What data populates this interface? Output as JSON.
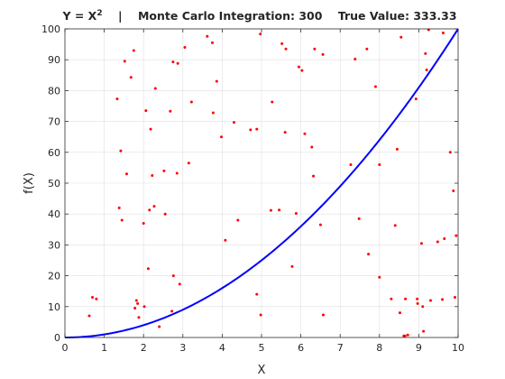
{
  "chart_data": {
    "type": "scatter",
    "title_prefix": "Y = X",
    "title_sup": "2",
    "title_rest": "    |    Monte Carlo Integration: 300    True Value: 333.33",
    "xlabel": "X",
    "ylabel": "f(X)",
    "xlim": [
      0,
      10
    ],
    "ylim": [
      0,
      100
    ],
    "xticks": [
      0,
      1,
      2,
      3,
      4,
      5,
      6,
      7,
      8,
      9,
      10
    ],
    "yticks": [
      0,
      10,
      20,
      30,
      40,
      50,
      60,
      70,
      80,
      90,
      100
    ],
    "grid": true,
    "colors": {
      "curve": "#0000ff",
      "points": "#ff0000"
    },
    "series": [
      {
        "type": "line",
        "function": "x^2",
        "x_range": [
          0,
          10
        ]
      },
      {
        "type": "scatter",
        "points": [
          [
            0.62,
            7.0
          ],
          [
            0.7,
            13.0
          ],
          [
            0.8,
            12.5
          ],
          [
            1.33,
            77.3
          ],
          [
            1.38,
            42.0
          ],
          [
            1.42,
            60.5
          ],
          [
            1.45,
            38.0
          ],
          [
            1.52,
            89.5
          ],
          [
            1.57,
            53.0
          ],
          [
            1.68,
            84.3
          ],
          [
            1.75,
            93.0
          ],
          [
            1.78,
            9.5
          ],
          [
            1.82,
            12.0
          ],
          [
            1.85,
            11.0
          ],
          [
            1.88,
            6.5
          ],
          [
            2.0,
            37.0
          ],
          [
            2.02,
            10.0
          ],
          [
            2.06,
            73.5
          ],
          [
            2.12,
            22.3
          ],
          [
            2.15,
            41.3
          ],
          [
            2.18,
            67.5
          ],
          [
            2.22,
            52.5
          ],
          [
            2.27,
            42.5
          ],
          [
            2.3,
            80.7
          ],
          [
            2.4,
            3.5
          ],
          [
            2.52,
            54.0
          ],
          [
            2.55,
            40.0
          ],
          [
            2.68,
            73.3
          ],
          [
            2.72,
            8.5
          ],
          [
            2.75,
            89.3
          ],
          [
            2.76,
            20.0
          ],
          [
            2.85,
            53.2
          ],
          [
            2.87,
            88.8
          ],
          [
            2.92,
            17.3
          ],
          [
            3.05,
            94.0
          ],
          [
            3.15,
            56.5
          ],
          [
            3.22,
            76.3
          ],
          [
            3.62,
            97.6
          ],
          [
            3.75,
            95.5
          ],
          [
            3.77,
            72.8
          ],
          [
            3.86,
            83.0
          ],
          [
            3.98,
            65.0
          ],
          [
            4.08,
            31.5
          ],
          [
            4.3,
            69.7
          ],
          [
            4.4,
            38.0
          ],
          [
            4.72,
            67.3
          ],
          [
            4.88,
            67.5
          ],
          [
            4.88,
            14.0
          ],
          [
            4.97,
            98.3
          ],
          [
            4.98,
            7.3
          ],
          [
            5.24,
            41.2
          ],
          [
            5.27,
            76.3
          ],
          [
            5.45,
            41.3
          ],
          [
            5.52,
            95.2
          ],
          [
            5.6,
            66.5
          ],
          [
            5.62,
            93.5
          ],
          [
            5.78,
            23.0
          ],
          [
            5.88,
            40.2
          ],
          [
            5.95,
            87.7
          ],
          [
            6.03,
            86.5
          ],
          [
            6.1,
            66.0
          ],
          [
            6.28,
            61.7
          ],
          [
            6.32,
            52.3
          ],
          [
            6.35,
            93.5
          ],
          [
            6.5,
            36.5
          ],
          [
            6.56,
            91.7
          ],
          [
            6.57,
            7.3
          ],
          [
            7.27,
            56.0
          ],
          [
            7.38,
            90.2
          ],
          [
            7.48,
            38.5
          ],
          [
            7.68,
            93.5
          ],
          [
            7.72,
            27.0
          ],
          [
            7.9,
            81.3
          ],
          [
            8.0,
            56.0
          ],
          [
            8.0,
            19.5
          ],
          [
            8.3,
            12.5
          ],
          [
            8.4,
            36.3
          ],
          [
            8.45,
            61.0
          ],
          [
            8.52,
            8.0
          ],
          [
            8.55,
            97.3
          ],
          [
            8.62,
            0.5
          ],
          [
            8.65,
            0.5
          ],
          [
            8.66,
            12.5
          ],
          [
            8.72,
            0.8
          ],
          [
            8.93,
            77.3
          ],
          [
            8.96,
            12.5
          ],
          [
            8.97,
            11.0
          ],
          [
            9.07,
            30.5
          ],
          [
            9.1,
            10.0
          ],
          [
            9.12,
            2.0
          ],
          [
            9.17,
            92.0
          ],
          [
            9.2,
            86.7
          ],
          [
            9.25,
            99.7
          ],
          [
            9.3,
            12.0
          ],
          [
            9.48,
            31.0
          ],
          [
            9.6,
            12.3
          ],
          [
            9.62,
            98.7
          ],
          [
            9.65,
            32.0
          ],
          [
            9.8,
            60.0
          ],
          [
            9.88,
            47.5
          ],
          [
            9.92,
            13.0
          ],
          [
            9.95,
            33.0
          ]
        ]
      }
    ]
  }
}
